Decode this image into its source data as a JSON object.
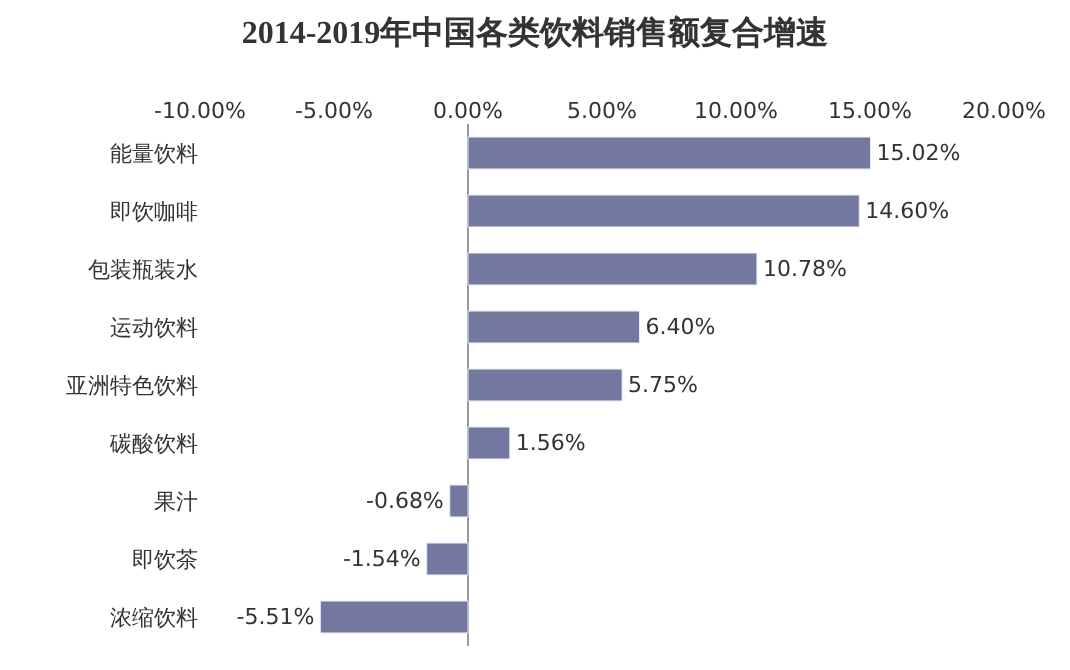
{
  "chart_data": {
    "type": "bar",
    "orientation": "horizontal",
    "title": "2014-2019年中国各类饮料销售额复合增速",
    "categories": [
      "能量饮料",
      "即饮咖啡",
      "包装瓶装水",
      "运动饮料",
      "亚洲特色饮料",
      "碳酸饮料",
      "果汁",
      "即饮茶",
      "浓缩饮料"
    ],
    "values": [
      15.02,
      14.6,
      10.78,
      6.4,
      5.75,
      1.56,
      -0.68,
      -1.54,
      -5.51
    ],
    "value_labels": [
      "15.02%",
      "14.60%",
      "10.78%",
      "6.40%",
      "5.75%",
      "1.56%",
      "-0.68%",
      "-1.54%",
      "-5.51%"
    ],
    "color": "#7378a0",
    "xlim": [
      -10,
      20
    ],
    "xticks": [
      {
        "value": -10,
        "label": "-10.00%"
      },
      {
        "value": -5,
        "label": "-5.00%"
      },
      {
        "value": 0,
        "label": "0.00%"
      },
      {
        "value": 5,
        "label": "5.00%"
      },
      {
        "value": 10,
        "label": "10.00%"
      },
      {
        "value": 15,
        "label": "15.00%"
      },
      {
        "value": 20,
        "label": "20.00%"
      }
    ],
    "legend": false
  }
}
